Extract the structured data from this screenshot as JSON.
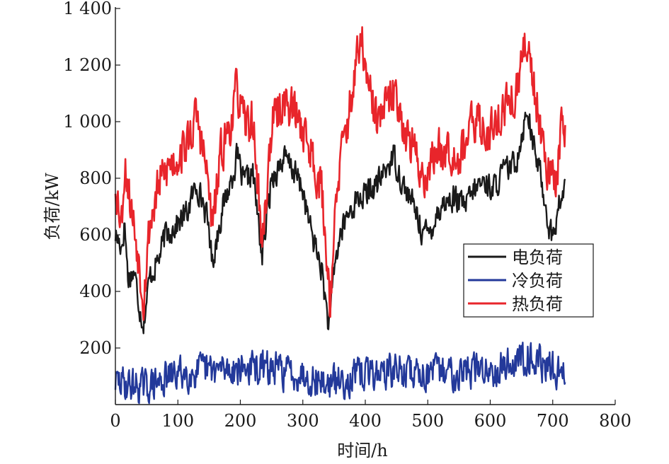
{
  "chart_data": {
    "type": "line",
    "xlabel": "时间/h",
    "ylabel": "负荷/kW",
    "xlim": [
      0,
      800
    ],
    "ylim": [
      0,
      1400
    ],
    "x_ticks": [
      0,
      100,
      200,
      300,
      400,
      500,
      600,
      700,
      800
    ],
    "x_tick_labels": [
      "0",
      "100",
      "200",
      "300",
      "400",
      "500",
      "600",
      "700",
      "800"
    ],
    "y_ticks": [
      200,
      400,
      600,
      800,
      1000,
      1200,
      1400
    ],
    "y_tick_labels": [
      "200",
      "400",
      "600",
      "800",
      "1 000",
      "1 200",
      "1 400"
    ],
    "grid": false,
    "legend_position": "right",
    "x_step_hours": 1,
    "hours": 720,
    "series": [
      {
        "name": "电负荷",
        "color": "#1a1a1a",
        "control_points": [
          [
            0,
            600
          ],
          [
            10,
            560
          ],
          [
            15,
            640
          ],
          [
            20,
            450
          ],
          [
            30,
            470
          ],
          [
            40,
            330
          ],
          [
            45,
            290
          ],
          [
            55,
            450
          ],
          [
            70,
            520
          ],
          [
            80,
            600
          ],
          [
            100,
            640
          ],
          [
            115,
            680
          ],
          [
            130,
            780
          ],
          [
            140,
            720
          ],
          [
            150,
            620
          ],
          [
            155,
            500
          ],
          [
            170,
            680
          ],
          [
            185,
            790
          ],
          [
            195,
            880
          ],
          [
            205,
            780
          ],
          [
            220,
            820
          ],
          [
            230,
            620
          ],
          [
            235,
            520
          ],
          [
            250,
            800
          ],
          [
            270,
            870
          ],
          [
            285,
            830
          ],
          [
            300,
            760
          ],
          [
            310,
            640
          ],
          [
            320,
            560
          ],
          [
            330,
            480
          ],
          [
            340,
            300
          ],
          [
            343,
            280
          ],
          [
            350,
            480
          ],
          [
            360,
            600
          ],
          [
            370,
            660
          ],
          [
            385,
            720
          ],
          [
            400,
            740
          ],
          [
            420,
            780
          ],
          [
            435,
            840
          ],
          [
            445,
            880
          ],
          [
            460,
            780
          ],
          [
            480,
            690
          ],
          [
            490,
            620
          ],
          [
            500,
            600
          ],
          [
            520,
            700
          ],
          [
            540,
            730
          ],
          [
            560,
            700
          ],
          [
            575,
            760
          ],
          [
            590,
            790
          ],
          [
            605,
            760
          ],
          [
            620,
            820
          ],
          [
            640,
            850
          ],
          [
            660,
            1050
          ],
          [
            670,
            900
          ],
          [
            680,
            820
          ],
          [
            695,
            620
          ],
          [
            700,
            590
          ],
          [
            710,
            700
          ],
          [
            720,
            770
          ]
        ],
        "jitter": 65,
        "seed": 17
      },
      {
        "name": "冷负荷",
        "color": "#23399a",
        "control_points": [
          [
            0,
            80
          ],
          [
            50,
            60
          ],
          [
            100,
            110
          ],
          [
            150,
            120
          ],
          [
            200,
            130
          ],
          [
            250,
            125
          ],
          [
            300,
            110
          ],
          [
            340,
            70
          ],
          [
            400,
            110
          ],
          [
            450,
            120
          ],
          [
            500,
            110
          ],
          [
            550,
            120
          ],
          [
            600,
            125
          ],
          [
            640,
            150
          ],
          [
            660,
            180
          ],
          [
            690,
            130
          ],
          [
            720,
            110
          ]
        ],
        "jitter": 85,
        "floor": 5,
        "seed": 29
      },
      {
        "name": "热负荷",
        "color": "#e8252b",
        "control_points": [
          [
            0,
            780
          ],
          [
            10,
            650
          ],
          [
            15,
            860
          ],
          [
            25,
            700
          ],
          [
            35,
            560
          ],
          [
            45,
            380
          ],
          [
            55,
            640
          ],
          [
            70,
            780
          ],
          [
            85,
            840
          ],
          [
            100,
            880
          ],
          [
            115,
            920
          ],
          [
            130,
            1020
          ],
          [
            140,
            900
          ],
          [
            150,
            760
          ],
          [
            155,
            620
          ],
          [
            170,
            900
          ],
          [
            185,
            1000
          ],
          [
            195,
            1120
          ],
          [
            205,
            990
          ],
          [
            220,
            1000
          ],
          [
            230,
            720
          ],
          [
            235,
            560
          ],
          [
            250,
            980
          ],
          [
            270,
            1080
          ],
          [
            285,
            1040
          ],
          [
            300,
            980
          ],
          [
            315,
            880
          ],
          [
            330,
            760
          ],
          [
            340,
            480
          ],
          [
            343,
            360
          ],
          [
            350,
            600
          ],
          [
            360,
            860
          ],
          [
            375,
            1040
          ],
          [
            385,
            1200
          ],
          [
            395,
            1280
          ],
          [
            405,
            1100
          ],
          [
            420,
            1000
          ],
          [
            435,
            1060
          ],
          [
            450,
            1100
          ],
          [
            465,
            960
          ],
          [
            480,
            880
          ],
          [
            495,
            800
          ],
          [
            510,
            880
          ],
          [
            530,
            920
          ],
          [
            550,
            880
          ],
          [
            565,
            960
          ],
          [
            580,
            1000
          ],
          [
            595,
            960
          ],
          [
            610,
            1000
          ],
          [
            625,
            1060
          ],
          [
            640,
            1080
          ],
          [
            660,
            1300
          ],
          [
            670,
            1120
          ],
          [
            680,
            1000
          ],
          [
            695,
            800
          ],
          [
            705,
            780
          ],
          [
            715,
            1000
          ],
          [
            720,
            1000
          ]
        ],
        "jitter": 110,
        "seed": 53
      }
    ]
  }
}
